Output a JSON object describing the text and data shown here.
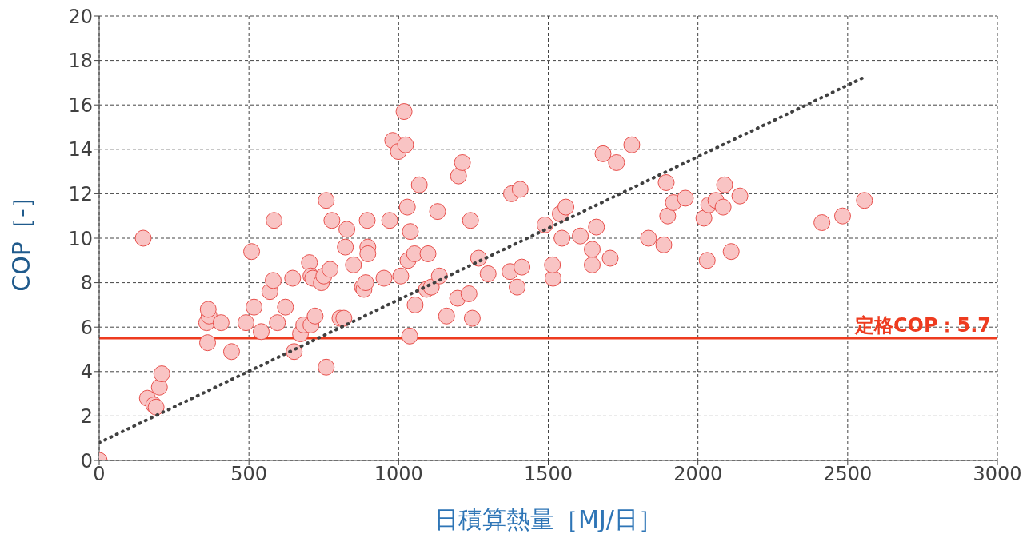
{
  "chart_data": {
    "type": "scatter",
    "xlabel": "日積算熱量［MJ/日］",
    "ylabel": "COP［-］",
    "xlim": [
      0,
      3000
    ],
    "xticks": [
      0,
      500,
      1000,
      1500,
      2000,
      2500,
      3000
    ],
    "ylim": [
      0,
      20
    ],
    "yticks": [
      0,
      2,
      4,
      6,
      8,
      10,
      12,
      14,
      16,
      18,
      20
    ],
    "grid": true,
    "legend": false,
    "marker": "circle",
    "ref_lines": [
      {
        "axis": "y",
        "value": 5.5,
        "label": "定格COP：5.7",
        "color": "#ee3b1f"
      }
    ],
    "series": [
      {
        "color": "#f9c4c4",
        "x": [
          0,
          147,
          161,
          182,
          190,
          201,
          209,
          362,
          359,
          367,
          364,
          407,
          442,
          490,
          509,
          517,
          541,
          570,
          581,
          584,
          595,
          622,
          646,
          651,
          672,
          683,
          702,
          707,
          707,
          713,
          721,
          742,
          750,
          758,
          758,
          771,
          777,
          804,
          817,
          822,
          827,
          849,
          879,
          884,
          890,
          895,
          897,
          897,
          951,
          970,
          980,
          999,
          1007,
          1018,
          1023,
          1029,
          1031,
          1037,
          1039,
          1053,
          1055,
          1069,
          1093,
          1098,
          1109,
          1130,
          1136,
          1160,
          1197,
          1200,
          1213,
          1235,
          1240,
          1246,
          1267,
          1299,
          1372,
          1377,
          1396,
          1406,
          1412,
          1489,
          1516,
          1514,
          1540,
          1546,
          1559,
          1607,
          1647,
          1647,
          1661,
          1683,
          1707,
          1728,
          1779,
          1835,
          1886,
          1894,
          1899,
          1918,
          1958,
          2020,
          2031,
          2036,
          2060,
          2084,
          2089,
          2111,
          2140,
          2414,
          2483,
          2556
        ],
        "values": [
          0,
          10.0,
          2.8,
          2.5,
          2.4,
          3.3,
          3.9,
          5.3,
          6.2,
          6.5,
          6.8,
          6.2,
          4.9,
          6.2,
          9.4,
          6.9,
          5.8,
          7.6,
          8.1,
          10.8,
          6.2,
          6.9,
          8.2,
          4.9,
          5.7,
          6.1,
          8.9,
          8.3,
          6.1,
          8.2,
          6.5,
          8.0,
          8.3,
          11.7,
          4.2,
          8.6,
          10.8,
          6.4,
          6.4,
          9.6,
          10.4,
          8.8,
          7.8,
          7.7,
          8.0,
          10.8,
          9.6,
          9.3,
          8.2,
          10.8,
          14.4,
          13.9,
          8.3,
          15.7,
          14.2,
          11.4,
          9.0,
          5.6,
          10.3,
          9.3,
          7.0,
          12.4,
          7.7,
          9.3,
          7.8,
          11.2,
          8.3,
          6.5,
          7.3,
          12.8,
          13.4,
          7.5,
          10.8,
          6.4,
          9.1,
          8.4,
          8.5,
          12.0,
          7.8,
          12.2,
          8.7,
          10.6,
          8.2,
          8.8,
          11.1,
          10.0,
          11.4,
          10.1,
          8.8,
          9.5,
          10.5,
          13.8,
          9.1,
          13.4,
          14.2,
          10.0,
          9.7,
          12.5,
          11.0,
          11.6,
          11.8,
          10.9,
          9.0,
          11.5,
          11.7,
          11.4,
          12.4,
          9.4,
          11.9,
          10.7,
          11.0,
          11.7
        ]
      },
      {
        "type": "line",
        "color": "#404040",
        "line_style": "dotted",
        "marker": "none",
        "x": [
          0,
          2564
        ],
        "values": [
          0.8,
          17.3
        ]
      }
    ]
  }
}
